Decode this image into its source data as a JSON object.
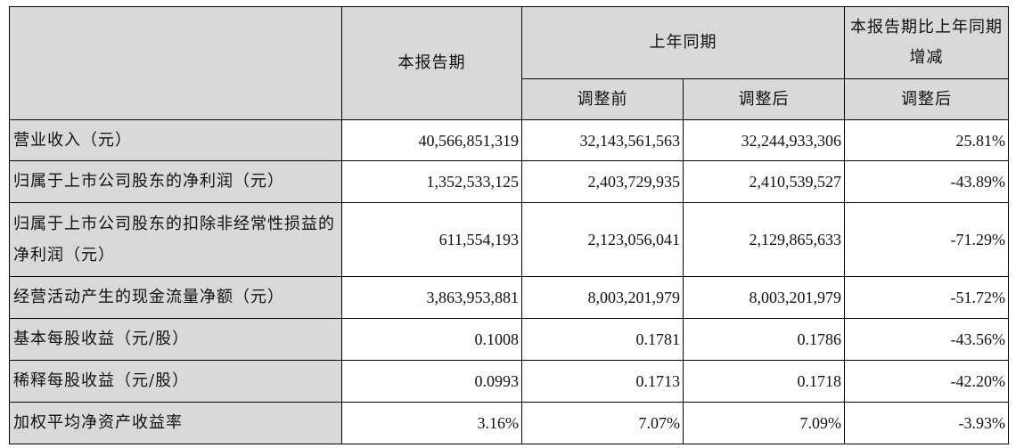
{
  "header": {
    "current_period": "本报告期",
    "same_period_last_year": "上年同期",
    "change_ratio": "本报告期比上年同期增减",
    "before_adjustment": "调整前",
    "after_adjustment": "调整后",
    "after_adjustment_change": "调整后"
  },
  "rows": [
    {
      "label": "营业收入（元）",
      "current": "40,566,851,319",
      "before": "32,143,561,563",
      "after": "32,244,933,306",
      "change": "25.81%"
    },
    {
      "label": "归属于上市公司股东的净利润（元）",
      "current": "1,352,533,125",
      "before": "2,403,729,935",
      "after": "2,410,539,527",
      "change": "-43.89%"
    },
    {
      "label": "归属于上市公司股东的扣除非经常性损益的净利润（元）",
      "current": "611,554,193",
      "before": "2,123,056,041",
      "after": "2,129,865,633",
      "change": "-71.29%"
    },
    {
      "label": "经营活动产生的现金流量净额（元）",
      "current": "3,863,953,881",
      "before": "8,003,201,979",
      "after": "8,003,201,979",
      "change": "-51.72%"
    },
    {
      "label": "基本每股收益（元/股）",
      "current": "0.1008",
      "before": "0.1781",
      "after": "0.1786",
      "change": "-43.56%"
    },
    {
      "label": "稀释每股收益（元/股）",
      "current": "0.0993",
      "before": "0.1713",
      "after": "0.1718",
      "change": "-42.20%"
    },
    {
      "label": "加权平均净资产收益率",
      "current": "3.16%",
      "before": "7.07%",
      "after": "7.09%",
      "change": "-3.93%"
    }
  ]
}
